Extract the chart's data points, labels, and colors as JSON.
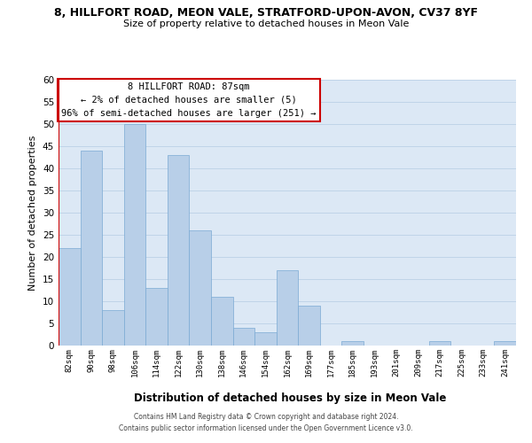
{
  "title_line1": "8, HILLFORT ROAD, MEON VALE, STRATFORD-UPON-AVON, CV37 8YF",
  "title_line2": "Size of property relative to detached houses in Meon Vale",
  "xlabel": "Distribution of detached houses by size in Meon Vale",
  "ylabel": "Number of detached properties",
  "bar_labels": [
    "82sqm",
    "90sqm",
    "98sqm",
    "106sqm",
    "114sqm",
    "122sqm",
    "130sqm",
    "138sqm",
    "146sqm",
    "154sqm",
    "162sqm",
    "169sqm",
    "177sqm",
    "185sqm",
    "193sqm",
    "201sqm",
    "209sqm",
    "217sqm",
    "225sqm",
    "233sqm",
    "241sqm"
  ],
  "bar_values": [
    22,
    44,
    8,
    50,
    13,
    43,
    26,
    11,
    4,
    3,
    17,
    9,
    0,
    1,
    0,
    0,
    0,
    1,
    0,
    0,
    1
  ],
  "bar_color": "#b8cfe8",
  "bar_edge_color": "#7aaad4",
  "highlight_color": "#cc0000",
  "ylim": [
    0,
    60
  ],
  "yticks": [
    0,
    5,
    10,
    15,
    20,
    25,
    30,
    35,
    40,
    45,
    50,
    55,
    60
  ],
  "annotation_title": "8 HILLFORT ROAD: 87sqm",
  "annotation_line2": "← 2% of detached houses are smaller (5)",
  "annotation_line3": "96% of semi-detached houses are larger (251) →",
  "annotation_box_color": "#ffffff",
  "annotation_border_color": "#cc0000",
  "footer_line1": "Contains HM Land Registry data © Crown copyright and database right 2024.",
  "footer_line2": "Contains public sector information licensed under the Open Government Licence v3.0.",
  "background_color": "#ffffff",
  "plot_bg_color": "#dce8f5",
  "grid_color": "#c0d4e8"
}
